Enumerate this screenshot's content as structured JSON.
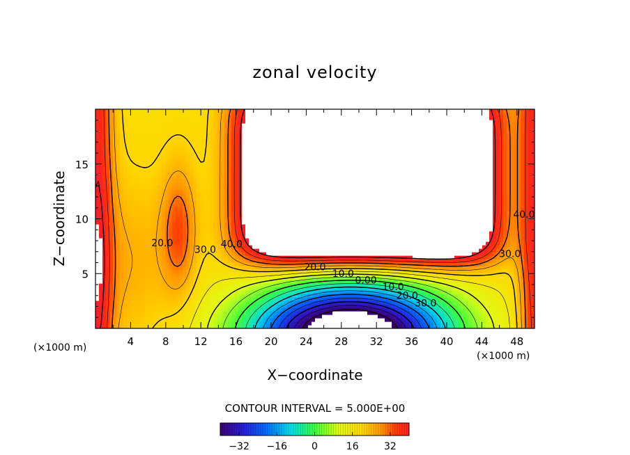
{
  "chart_data": {
    "type": "heatmap",
    "title": "zonal velocity",
    "xlabel": "X−coordinate",
    "ylabel": "Z−coordinate",
    "x_unit_left": "(×1000 m)",
    "x_unit_right": "(×1000 m)",
    "xlim": [
      0,
      50
    ],
    "ylim": [
      0,
      20
    ],
    "xticks": [
      "4",
      "8",
      "12",
      "16",
      "20",
      "24",
      "28",
      "32",
      "36",
      "40",
      "44",
      "48"
    ],
    "xtick_values": [
      4,
      8,
      12,
      16,
      20,
      24,
      28,
      32,
      36,
      40,
      44,
      48
    ],
    "yticks": [
      "5",
      "10",
      "15"
    ],
    "ytick_values": [
      5,
      10,
      15
    ],
    "contour_interval_text": "CONTOUR INTERVAL = 5.000E+00",
    "contour_interval": 5,
    "contour_labels": [
      {
        "text": "20.0",
        "x": 7.6,
        "z": 7.5
      },
      {
        "text": "30.0",
        "x": 12.5,
        "z": 6.9
      },
      {
        "text": "40.0",
        "x": 15.5,
        "z": 7.4
      },
      {
        "text": "20.0",
        "x": 25.0,
        "z": 5.3
      },
      {
        "text": "10.0",
        "x": 28.2,
        "z": 4.7
      },
      {
        "text": "0.00",
        "x": 30.8,
        "z": 4.1
      },
      {
        "text": "10.0",
        "x": 33.9,
        "z": 3.5
      },
      {
        "text": "20.0",
        "x": 35.5,
        "z": 2.7
      },
      {
        "text": "30.0",
        "x": 37.6,
        "z": 2.0
      },
      {
        "text": "30.0",
        "x": 47.2,
        "z": 6.5
      },
      {
        "text": "40.0",
        "x": 48.8,
        "z": 10.1
      }
    ],
    "colorbar": {
      "ticks": [
        "−32",
        "−16",
        "0",
        "16",
        "32"
      ],
      "tick_values": [
        -32,
        -16,
        0,
        16,
        32
      ],
      "range": [
        -40,
        40
      ]
    },
    "colors": {
      "negative_deep": "#3d0070",
      "zero": "#3cff30",
      "positive_high": "#ff2020",
      "saturated": "#ffffff"
    }
  }
}
